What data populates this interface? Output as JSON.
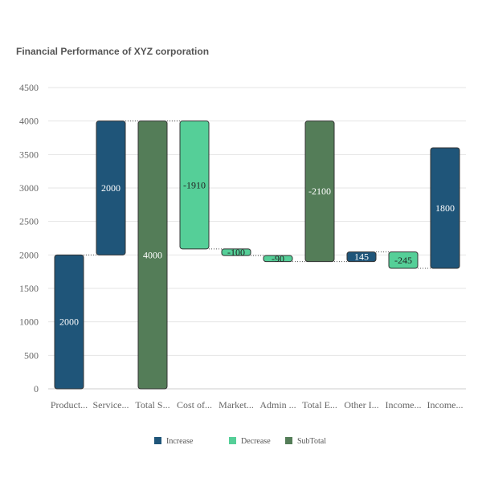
{
  "chart_data": {
    "type": "waterfall",
    "title": "Financial Performance of XYZ corporation",
    "categories": [
      "Product...",
      "Service...",
      "Total S...",
      "Cost of...",
      "Market...",
      "Admin ...",
      "Total E...",
      "Other I...",
      "Income...",
      "Income..."
    ],
    "values": [
      2000,
      2000,
      4000,
      -1910,
      -100,
      -90,
      -2100,
      145,
      -245,
      1800
    ],
    "kinds": [
      "Increase",
      "Increase",
      "SubTotal",
      "Decrease",
      "Decrease",
      "Decrease",
      "SubTotal",
      "Increase",
      "Decrease",
      "Increase"
    ],
    "ylim": [
      0,
      4500
    ],
    "yticks": [
      0,
      500,
      1000,
      1500,
      2000,
      2500,
      3000,
      3500,
      4000,
      4500
    ],
    "grid": true,
    "legend": {
      "position": "bottom",
      "entries": [
        "Increase",
        "Decrease",
        "SubTotal"
      ]
    },
    "colors": {
      "Increase": "#1f5579",
      "Decrease": "#55cf98",
      "SubTotal": "#547d58"
    }
  }
}
